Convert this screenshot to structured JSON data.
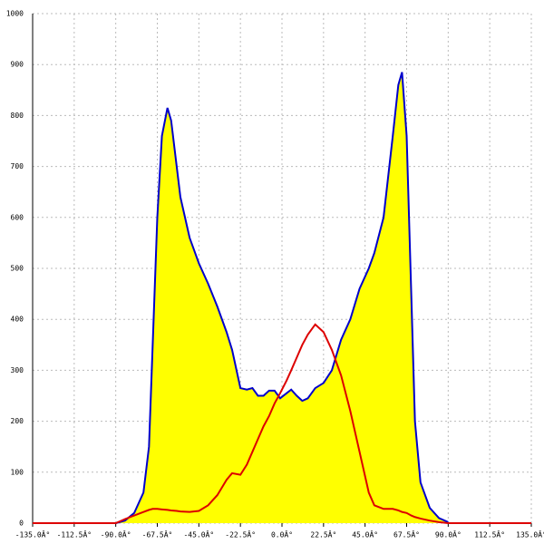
{
  "chart_data": {
    "type": "area",
    "x": [
      -135,
      -90,
      -85,
      -80,
      -75,
      -72,
      -70,
      -67.5,
      -65,
      -62,
      -60,
      -57,
      -55,
      -50,
      -45,
      -40,
      -35,
      -30,
      -27,
      -22.5,
      -19,
      -16,
      -13,
      -10,
      -7,
      -4,
      -1,
      2.5,
      5,
      8,
      11,
      14,
      18,
      22.5,
      27,
      32,
      37,
      42,
      47,
      50,
      55,
      60,
      63,
      65,
      67.5,
      70,
      72,
      75,
      80,
      85,
      90,
      135
    ],
    "series": [
      {
        "color": "#0000cc",
        "fill": "#ffff00",
        "values": [
          null,
          0,
          5,
          20,
          60,
          150,
          350,
          600,
          760,
          815,
          790,
          700,
          640,
          560,
          510,
          470,
          425,
          375,
          340,
          265,
          262,
          265,
          250,
          250,
          260,
          260,
          245,
          255,
          262,
          250,
          240,
          245,
          265,
          275,
          300,
          360,
          400,
          460,
          500,
          530,
          600,
          760,
          860,
          885,
          760,
          450,
          200,
          80,
          30,
          10,
          2,
          null
        ]
      },
      {
        "color": "#dd0000",
        "values": [
          0,
          0,
          8,
          15,
          22,
          26,
          28,
          28,
          27,
          26,
          25,
          24,
          23,
          22,
          24,
          35,
          55,
          85,
          98,
          95,
          115,
          140,
          165,
          190,
          210,
          235,
          255,
          280,
          300,
          325,
          350,
          370,
          390,
          375,
          340,
          290,
          220,
          140,
          60,
          35,
          28,
          28,
          25,
          22,
          20,
          15,
          12,
          9,
          5,
          2,
          0,
          0
        ]
      }
    ],
    "xlim": [
      -135,
      135
    ],
    "xticks": [
      {
        "value": -135,
        "label": "-135.0Â°"
      },
      {
        "value": -112.5,
        "label": "-112.5Â°"
      },
      {
        "value": -90,
        "label": "-90.0Â°"
      },
      {
        "value": -67.5,
        "label": "-67.5Â°"
      },
      {
        "value": -45,
        "label": "-45.0Â°"
      },
      {
        "value": -22.5,
        "label": "-22.5Â°"
      },
      {
        "value": 0,
        "label": "0.0Â°"
      },
      {
        "value": 22.5,
        "label": "22.5Â°"
      },
      {
        "value": 45,
        "label": "45.0Â°"
      },
      {
        "value": 67.5,
        "label": "67.5Â°"
      },
      {
        "value": 90,
        "label": "90.0Â°"
      },
      {
        "value": 112.5,
        "label": "112.5Â°"
      },
      {
        "value": 135,
        "label": "135.0Â°"
      }
    ],
    "ylim": [
      0,
      1000
    ],
    "yticks": [
      0,
      100,
      200,
      300,
      400,
      500,
      600,
      700,
      800,
      900,
      1000
    ],
    "grid": true
  }
}
